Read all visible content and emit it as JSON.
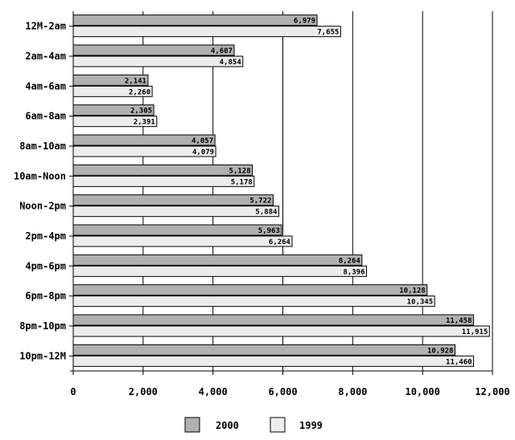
{
  "chart_data": {
    "type": "bar",
    "orientation": "horizontal",
    "categories": [
      "12M-2am",
      "2am-4am",
      "4am-6am",
      "6am-8am",
      "8am-10am",
      "10am-Noon",
      "Noon-2pm",
      "2pm-4pm",
      "4pm-6pm",
      "6pm-8pm",
      "8pm-10pm",
      "10pm-12M"
    ],
    "series": [
      {
        "name": "2000",
        "color": "#b0b0b0",
        "values": [
          6979,
          4607,
          2141,
          2305,
          4057,
          5128,
          5722,
          5963,
          8264,
          10128,
          11458,
          10928
        ],
        "labels": [
          "6,979",
          "4,607",
          "2,141",
          "2,305",
          "4,057",
          "5,128",
          "5,722",
          "5,963",
          "8,264",
          "10,128",
          "11,458",
          "10,928"
        ]
      },
      {
        "name": "1999",
        "color": "#ececec",
        "values": [
          7655,
          4854,
          2260,
          2391,
          4079,
          5178,
          5884,
          6264,
          8396,
          10345,
          11915,
          11460
        ],
        "labels": [
          "7,655",
          "4,854",
          "2,260",
          "2,391",
          "4,079",
          "5,178",
          "5,884",
          "6,264",
          "8,396",
          "10,345",
          "11,915",
          "11,460"
        ]
      }
    ],
    "xlim": [
      0,
      12000
    ],
    "xticks": [
      0,
      2000,
      4000,
      6000,
      8000,
      10000,
      12000
    ],
    "xtick_labels": [
      "0",
      "2,000",
      "4,000",
      "6,000",
      "8,000",
      "10,000",
      "12,000"
    ],
    "grid": true,
    "legend": "bottom",
    "title": "",
    "xlabel": "",
    "ylabel": ""
  }
}
